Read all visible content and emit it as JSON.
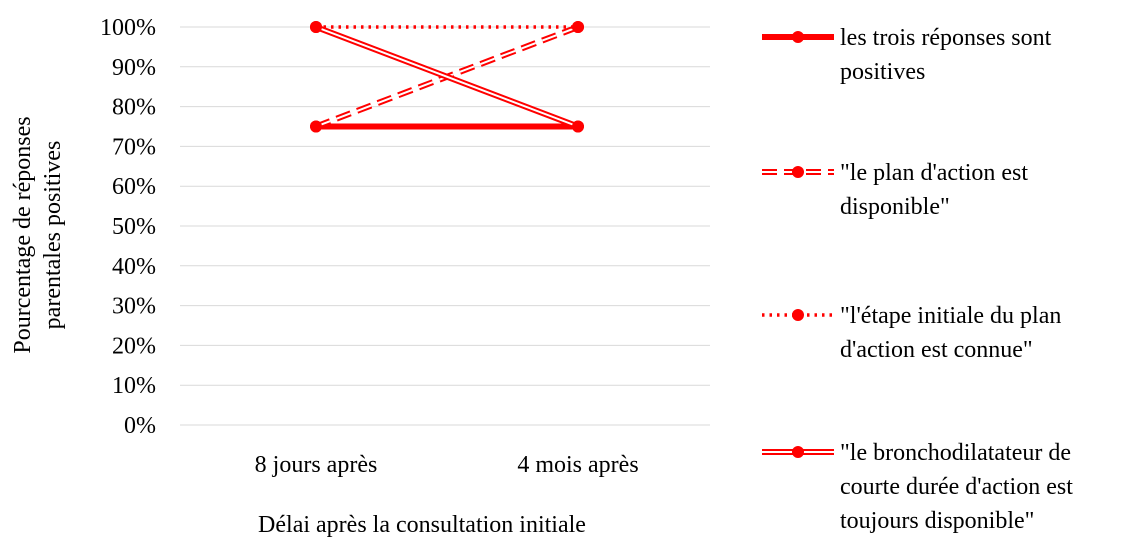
{
  "colors": {
    "series": "#ff0000",
    "grid": "#d9d9d9",
    "text": "#000000"
  },
  "chart_data": {
    "type": "line",
    "categories": [
      "8 jours après",
      "4 mois après"
    ],
    "ylim": [
      0,
      1
    ],
    "y_tick_labels": [
      "0%",
      "10%",
      "20%",
      "30%",
      "40%",
      "50%",
      "60%",
      "70%",
      "80%",
      "90%",
      "100%"
    ],
    "xlabel": "Délai après la consultation initiale",
    "ylabel_lines": [
      "Pourcentage de réponses",
      "parentales positives"
    ],
    "grid": "horizontal",
    "legend_position": "right",
    "series": [
      {
        "name": "les trois réponses sont positives",
        "name_lines": [
          "les trois réponses sont",
          "positives"
        ],
        "line_style": "solid-thick",
        "values": [
          0.75,
          0.75
        ]
      },
      {
        "name": "\"le plan d'action est disponible\"",
        "name_lines": [
          "\"le plan d'action est",
          "disponible\""
        ],
        "line_style": "dashed-double",
        "values": [
          0.75,
          1.0
        ]
      },
      {
        "name": "\"l'étape initiale du plan d'action est connue\"",
        "name_lines": [
          "\"l'étape initiale du plan",
          "d'action est connue\""
        ],
        "line_style": "dotted",
        "values": [
          1.0,
          1.0
        ]
      },
      {
        "name": "\"le bronchodilatateur de courte durée d'action est toujours disponible\"",
        "name_lines": [
          "\"le bronchodilatateur de",
          "courte durée d'action est",
          "toujours disponible\""
        ],
        "line_style": "double",
        "values": [
          1.0,
          0.75
        ]
      }
    ]
  }
}
